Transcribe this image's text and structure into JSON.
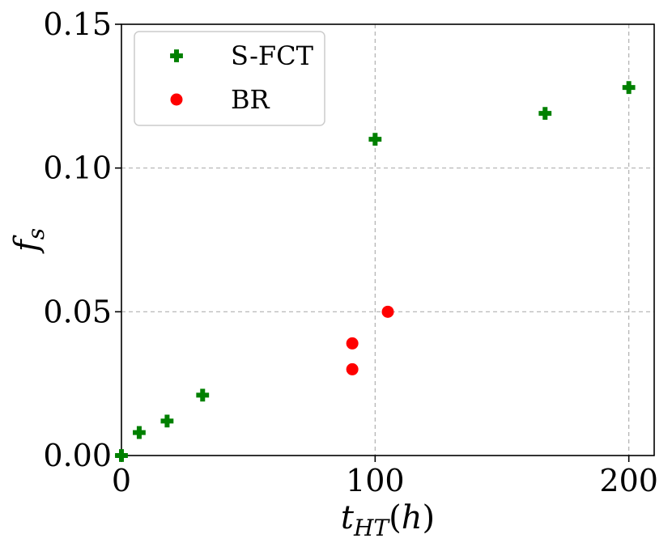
{
  "chart_data": {
    "type": "scatter",
    "title": "",
    "xlabel": "t_HT(h)",
    "ylabel": "f_s",
    "xlim": [
      0,
      210
    ],
    "ylim": [
      0,
      0.15
    ],
    "x_ticks": [
      0,
      100,
      200
    ],
    "x_tick_labels": [
      "0",
      "100",
      "200"
    ],
    "y_ticks": [
      0.0,
      0.05,
      0.1,
      0.15
    ],
    "y_tick_labels": [
      "0.00",
      "0.05",
      "0.10",
      "0.15"
    ],
    "grid": true,
    "legend_position": "top-left",
    "series": [
      {
        "name": "S-FCT",
        "marker": "plus-filled",
        "color": "#008000",
        "points": [
          {
            "x": 0,
            "y": 0.0
          },
          {
            "x": 7,
            "y": 0.008
          },
          {
            "x": 18,
            "y": 0.012
          },
          {
            "x": 32,
            "y": 0.021
          },
          {
            "x": 100,
            "y": 0.11
          },
          {
            "x": 167,
            "y": 0.119
          },
          {
            "x": 200,
            "y": 0.128
          }
        ]
      },
      {
        "name": "BR",
        "marker": "circle",
        "color": "#ff0000",
        "points": [
          {
            "x": 91,
            "y": 0.039
          },
          {
            "x": 91,
            "y": 0.03
          },
          {
            "x": 105,
            "y": 0.05
          }
        ]
      }
    ]
  }
}
